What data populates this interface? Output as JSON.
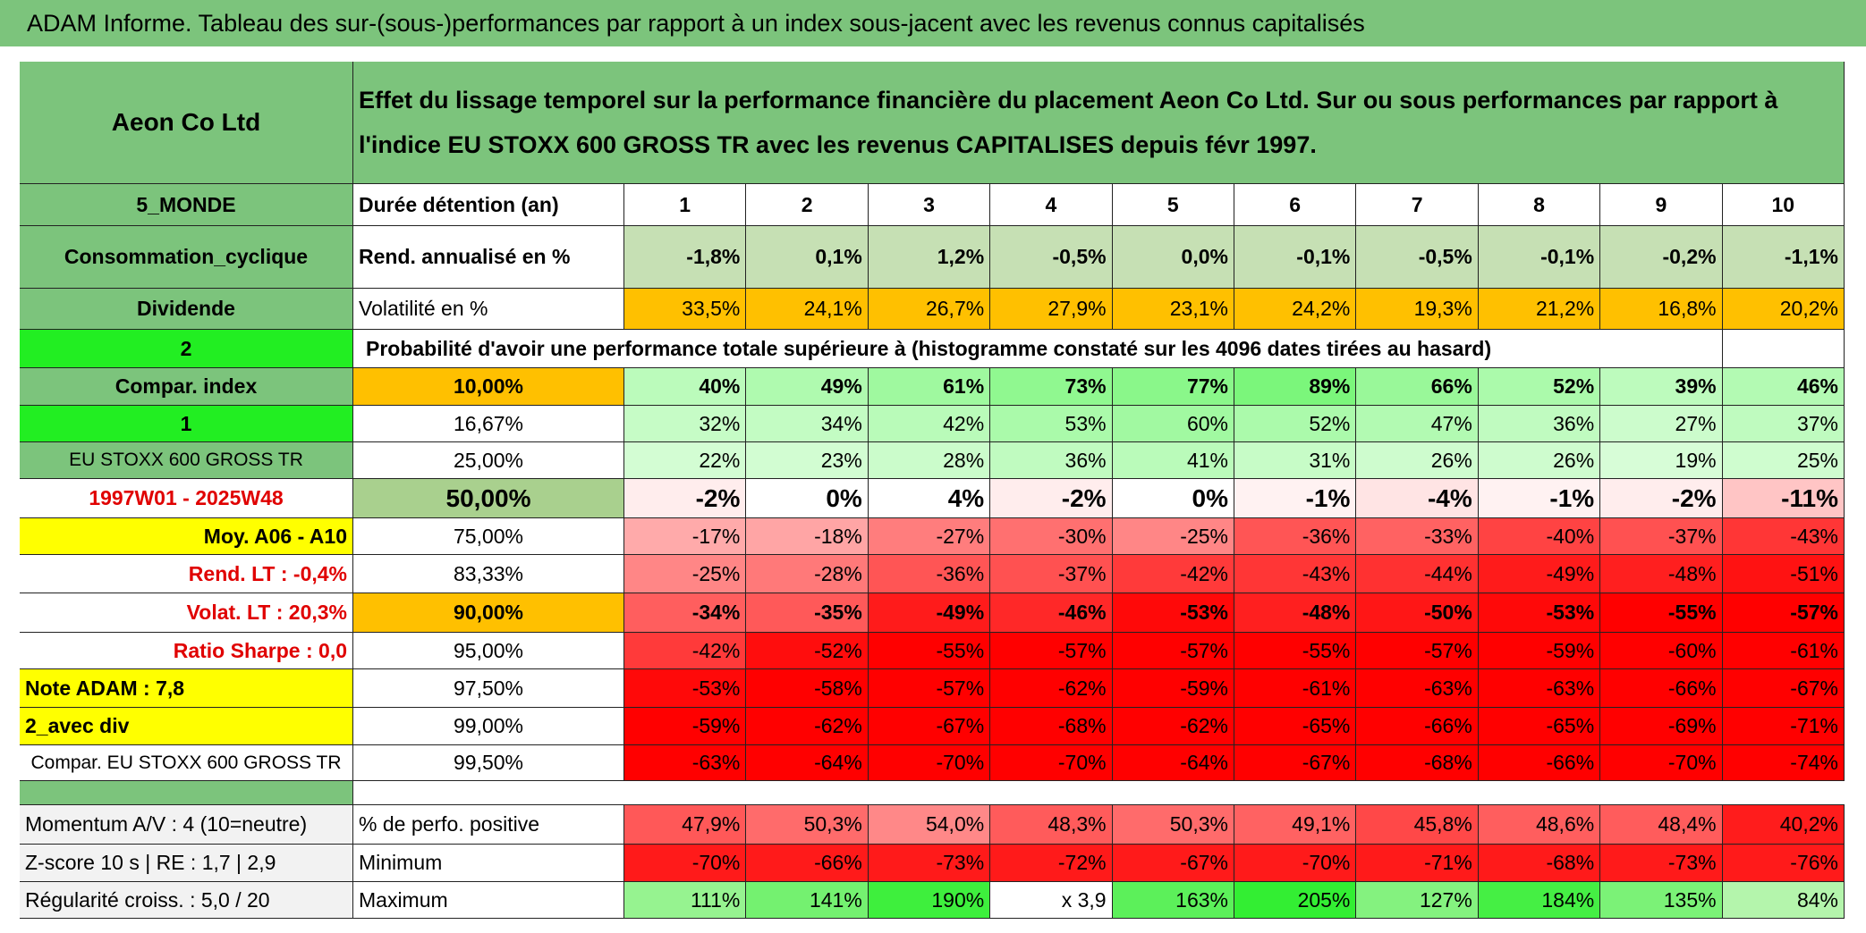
{
  "title": "ADAM Informe. Tableau des sur-(sous-)performances par rapport à un index sous-jacent avec les revenus connus capitalisés",
  "header": {
    "name": "Aeon Co Ltd",
    "description": "Effet du lissage temporel sur la performance financière du placement Aeon Co Ltd. Sur ou sous performances par rapport à l'indice EU STOXX 600 GROSS TR avec les revenus CAPITALISES depuis févr 1997."
  },
  "table": {
    "rows": [
      [
        "5_MONDE",
        "Durée détention (an)",
        "1",
        "2",
        "3",
        "4",
        "5",
        "6",
        "7",
        "8",
        "9",
        "10"
      ],
      [
        "Consommation_cyclique",
        "Rend. annualisé en %",
        "-1,8%",
        "0,1%",
        "1,2%",
        "-0,5%",
        "0,0%",
        "-0,1%",
        "-0,5%",
        "-0,1%",
        "-0,2%",
        "-1,1%"
      ],
      [
        "Dividende",
        "Volatilité en %",
        "33,5%",
        "24,1%",
        "26,7%",
        "27,9%",
        "23,1%",
        "24,2%",
        "19,3%",
        "21,2%",
        "16,8%",
        "20,2%"
      ],
      [
        "2",
        "Probabilité d'avoir une performance totale supérieure à (histogramme constaté sur les 4096 dates tirées au hasard)"
      ],
      [
        "Compar. index",
        "10,00%",
        "40%",
        "49%",
        "61%",
        "73%",
        "77%",
        "89%",
        "66%",
        "52%",
        "39%",
        "46%"
      ],
      [
        "1",
        "16,67%",
        "32%",
        "34%",
        "42%",
        "53%",
        "60%",
        "52%",
        "47%",
        "36%",
        "27%",
        "37%"
      ],
      [
        "EU STOXX 600 GROSS TR",
        "25,00%",
        "22%",
        "23%",
        "28%",
        "36%",
        "41%",
        "31%",
        "26%",
        "26%",
        "19%",
        "25%"
      ],
      [
        "1997W01 - 2025W48",
        "50,00%",
        "-2%",
        "0%",
        "4%",
        "-2%",
        "0%",
        "-1%",
        "-4%",
        "-1%",
        "-2%",
        "-11%"
      ],
      [
        "Moy. A06 - A10",
        "75,00%",
        "-17%",
        "-18%",
        "-27%",
        "-30%",
        "-25%",
        "-36%",
        "-33%",
        "-40%",
        "-37%",
        "-43%"
      ],
      [
        "Rend. LT :    -0,4%",
        "83,33%",
        "-25%",
        "-28%",
        "-36%",
        "-37%",
        "-42%",
        "-43%",
        "-44%",
        "-49%",
        "-48%",
        "-51%"
      ],
      [
        "Volat. LT :    20,3%",
        "90,00%",
        "-34%",
        "-35%",
        "-49%",
        "-46%",
        "-53%",
        "-48%",
        "-50%",
        "-53%",
        "-55%",
        "-57%"
      ],
      [
        "Ratio Sharpe :    0,0",
        "95,00%",
        "-42%",
        "-52%",
        "-55%",
        "-57%",
        "-57%",
        "-55%",
        "-57%",
        "-59%",
        "-60%",
        "-61%"
      ],
      [
        "Note ADAM : 7,8",
        "97,50%",
        "-53%",
        "-58%",
        "-57%",
        "-62%",
        "-59%",
        "-61%",
        "-63%",
        "-63%",
        "-66%",
        "-67%"
      ],
      [
        "2_avec div",
        "99,00%",
        "-59%",
        "-62%",
        "-67%",
        "-68%",
        "-62%",
        "-65%",
        "-66%",
        "-65%",
        "-69%",
        "-71%"
      ],
      [
        "Compar. EU STOXX 600 GROSS TR",
        "99,50%",
        "-63%",
        "-64%",
        "-70%",
        "-70%",
        "-64%",
        "-67%",
        "-68%",
        "-66%",
        "-70%",
        "-74%"
      ],
      [
        "Momentum A/V : 4 (10=neutre)",
        "% de perfo. positive",
        "47,9%",
        "50,3%",
        "54,0%",
        "48,3%",
        "50,3%",
        "49,1%",
        "45,8%",
        "48,6%",
        "48,4%",
        "40,2%"
      ],
      [
        "Z-score 10 s | RE : 1,7 | 2,9",
        "Minimum",
        "-70%",
        "-66%",
        "-73%",
        "-72%",
        "-67%",
        "-70%",
        "-71%",
        "-68%",
        "-73%",
        "-76%"
      ],
      [
        "Régularité croiss. : 5,0 / 20",
        "Maximum",
        "111%",
        "141%",
        "190%",
        "x 3,9",
        "163%",
        "205%",
        "127%",
        "184%",
        "135%",
        "84%"
      ]
    ]
  }
}
